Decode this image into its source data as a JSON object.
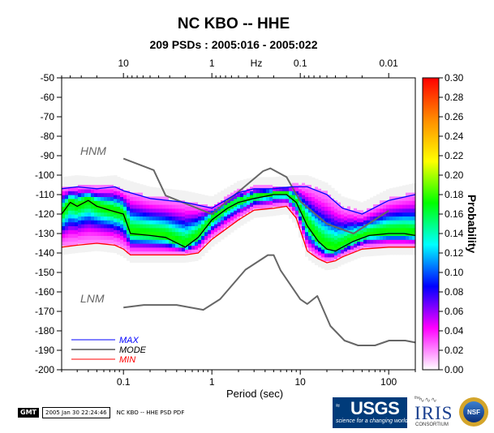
{
  "title": "NC KBO -- HHE",
  "subtitle": "209 PSDs : 2005:016 - 2005:022",
  "top_axis": {
    "unit": "Hz",
    "ticks": [
      10,
      1,
      0.1,
      0.01
    ],
    "tick_labels": [
      "10",
      "1",
      "0.1",
      "0.01"
    ]
  },
  "colorbar": {
    "label": "Probability",
    "min": 0.0,
    "max": 0.3,
    "ticks": [
      0.0,
      0.02,
      0.04,
      0.06,
      0.08,
      0.1,
      0.12,
      0.14,
      0.16,
      0.18,
      0.2,
      0.22,
      0.24,
      0.26,
      0.28,
      0.3
    ],
    "tick_labels": [
      "0.00",
      "0.02",
      "0.04",
      "0.06",
      "0.08",
      "0.10",
      "0.12",
      "0.14",
      "0.16",
      "0.18",
      "0.20",
      "0.22",
      "0.24",
      "0.26",
      "0.28",
      "0.30"
    ],
    "colors": [
      "#ffffff",
      "#ff00ff",
      "#0000ff",
      "#00ffff",
      "#00ff00",
      "#ffff00",
      "#ff8c00",
      "#ff0000"
    ]
  },
  "legend": {
    "placement": "bottom-left",
    "items": [
      {
        "label": "MAX",
        "color": "#0000ff"
      },
      {
        "label": "MODE",
        "color": "#000000"
      },
      {
        "label": "MIN",
        "color": "#ff0000"
      }
    ]
  },
  "model_labels": {
    "high": "HNM",
    "low": "LNM"
  },
  "footer": {
    "gmt": "GMT",
    "timestamp": "2005 Jan 30 22:24:46",
    "file": "NC KBO -- HHE PSD PDF"
  },
  "logos": {
    "usgs": {
      "name": "USGS",
      "tagline": "science for a changing world"
    },
    "iris": {
      "prefix": "the",
      "name": "IRIS",
      "sub": "CONSORTIUM"
    },
    "nsf": {
      "name": "NSF"
    }
  },
  "chart_data": {
    "type": "heatmap",
    "title": "NC KBO -- HHE",
    "subtitle": "209 PSDs : 2005:016 - 2005:022",
    "xlabel": "Period (sec)",
    "ylabel": "",
    "x_scale": "log",
    "xlim": [
      0.02,
      200
    ],
    "ylim": [
      -200,
      -50
    ],
    "grid": false,
    "x_ticks": [
      0.1,
      1,
      10,
      100
    ],
    "x_tick_labels": [
      "0.1",
      "1",
      "10",
      "100"
    ],
    "y_ticks": [
      -50,
      -60,
      -70,
      -80,
      -90,
      -100,
      -110,
      -120,
      -130,
      -140,
      -150,
      -160,
      -170,
      -180,
      -190,
      -200
    ],
    "y_tick_labels": [
      "-50",
      "-60",
      "-70",
      "-80",
      "-90",
      "-100",
      "-110",
      "-120",
      "-130",
      "-140",
      "-150",
      "-160",
      "-170",
      "-180",
      "-190",
      "-200"
    ],
    "series": [
      {
        "name": "HNM",
        "color": "#666666",
        "x": [
          0.1,
          0.22,
          0.3,
          1.0,
          3.8,
          4.6,
          7.0,
          10.0,
          20.0,
          40.0,
          100.0
        ],
        "y": [
          -91.5,
          -97.4,
          -110.5,
          -120.0,
          -97.9,
          -96.5,
          -101.0,
          -113.5,
          -125.0,
          -130.0,
          -118.3
        ]
      },
      {
        "name": "LNM",
        "color": "#666666",
        "x": [
          0.1,
          0.17,
          0.4,
          0.8,
          1.24,
          2.4,
          4.3,
          5.0,
          6.0,
          10.0,
          12.0,
          15.6,
          21.9,
          31.6,
          45.0,
          70.0,
          101.0,
          154.0,
          200.0
        ],
        "y": [
          -168.0,
          -166.7,
          -166.7,
          -169.2,
          -163.7,
          -148.6,
          -141.1,
          -141.1,
          -149.0,
          -163.8,
          -166.2,
          -162.1,
          -177.5,
          -185.0,
          -187.5,
          -187.5,
          -185.0,
          -185.0,
          -186.0
        ]
      },
      {
        "name": "MAX",
        "color": "#0000ff",
        "x": [
          0.02,
          0.03,
          0.05,
          0.08,
          0.1,
          0.2,
          0.5,
          1.0,
          2.0,
          3.0,
          5.0,
          8.0,
          12.0,
          20.0,
          30.0,
          50.0,
          100.0,
          200.0
        ],
        "y": [
          -107,
          -106,
          -107,
          -106,
          -108,
          -112,
          -114,
          -117,
          -109,
          -107,
          -107,
          -106,
          -106,
          -110,
          -117,
          -120,
          -113,
          -110
        ]
      },
      {
        "name": "MODE",
        "color": "#000000",
        "x": [
          0.02,
          0.025,
          0.03,
          0.04,
          0.05,
          0.07,
          0.1,
          0.12,
          0.2,
          0.3,
          0.5,
          0.7,
          1.0,
          1.5,
          2.0,
          3.0,
          5.0,
          7.0,
          9.0,
          12.0,
          16.0,
          20.0,
          25.0,
          30.0,
          40.0,
          60.0,
          100.0,
          150.0,
          200.0
        ],
        "y": [
          -120,
          -114,
          -116,
          -113,
          -116,
          -118,
          -120,
          -130,
          -131,
          -132,
          -137,
          -132,
          -123,
          -117,
          -114,
          -112,
          -110,
          -110,
          -114,
          -126,
          -134,
          -138,
          -139,
          -137,
          -134,
          -131,
          -130,
          -130,
          -131
        ]
      },
      {
        "name": "MIN",
        "color": "#ff0000",
        "x": [
          0.02,
          0.03,
          0.05,
          0.08,
          0.1,
          0.12,
          0.2,
          0.3,
          0.5,
          0.7,
          1.0,
          2.0,
          3.0,
          5.0,
          7.0,
          9.0,
          12.0,
          16.0,
          20.0,
          25.0,
          30.0,
          50.0,
          100.0,
          200.0
        ],
        "y": [
          -137,
          -136,
          -135,
          -136,
          -138,
          -141,
          -141,
          -141,
          -141,
          -140,
          -133,
          -123,
          -118,
          -117,
          -116,
          -122,
          -139,
          -143,
          -145,
          -144,
          -142,
          -138,
          -137,
          -137
        ]
      }
    ]
  }
}
